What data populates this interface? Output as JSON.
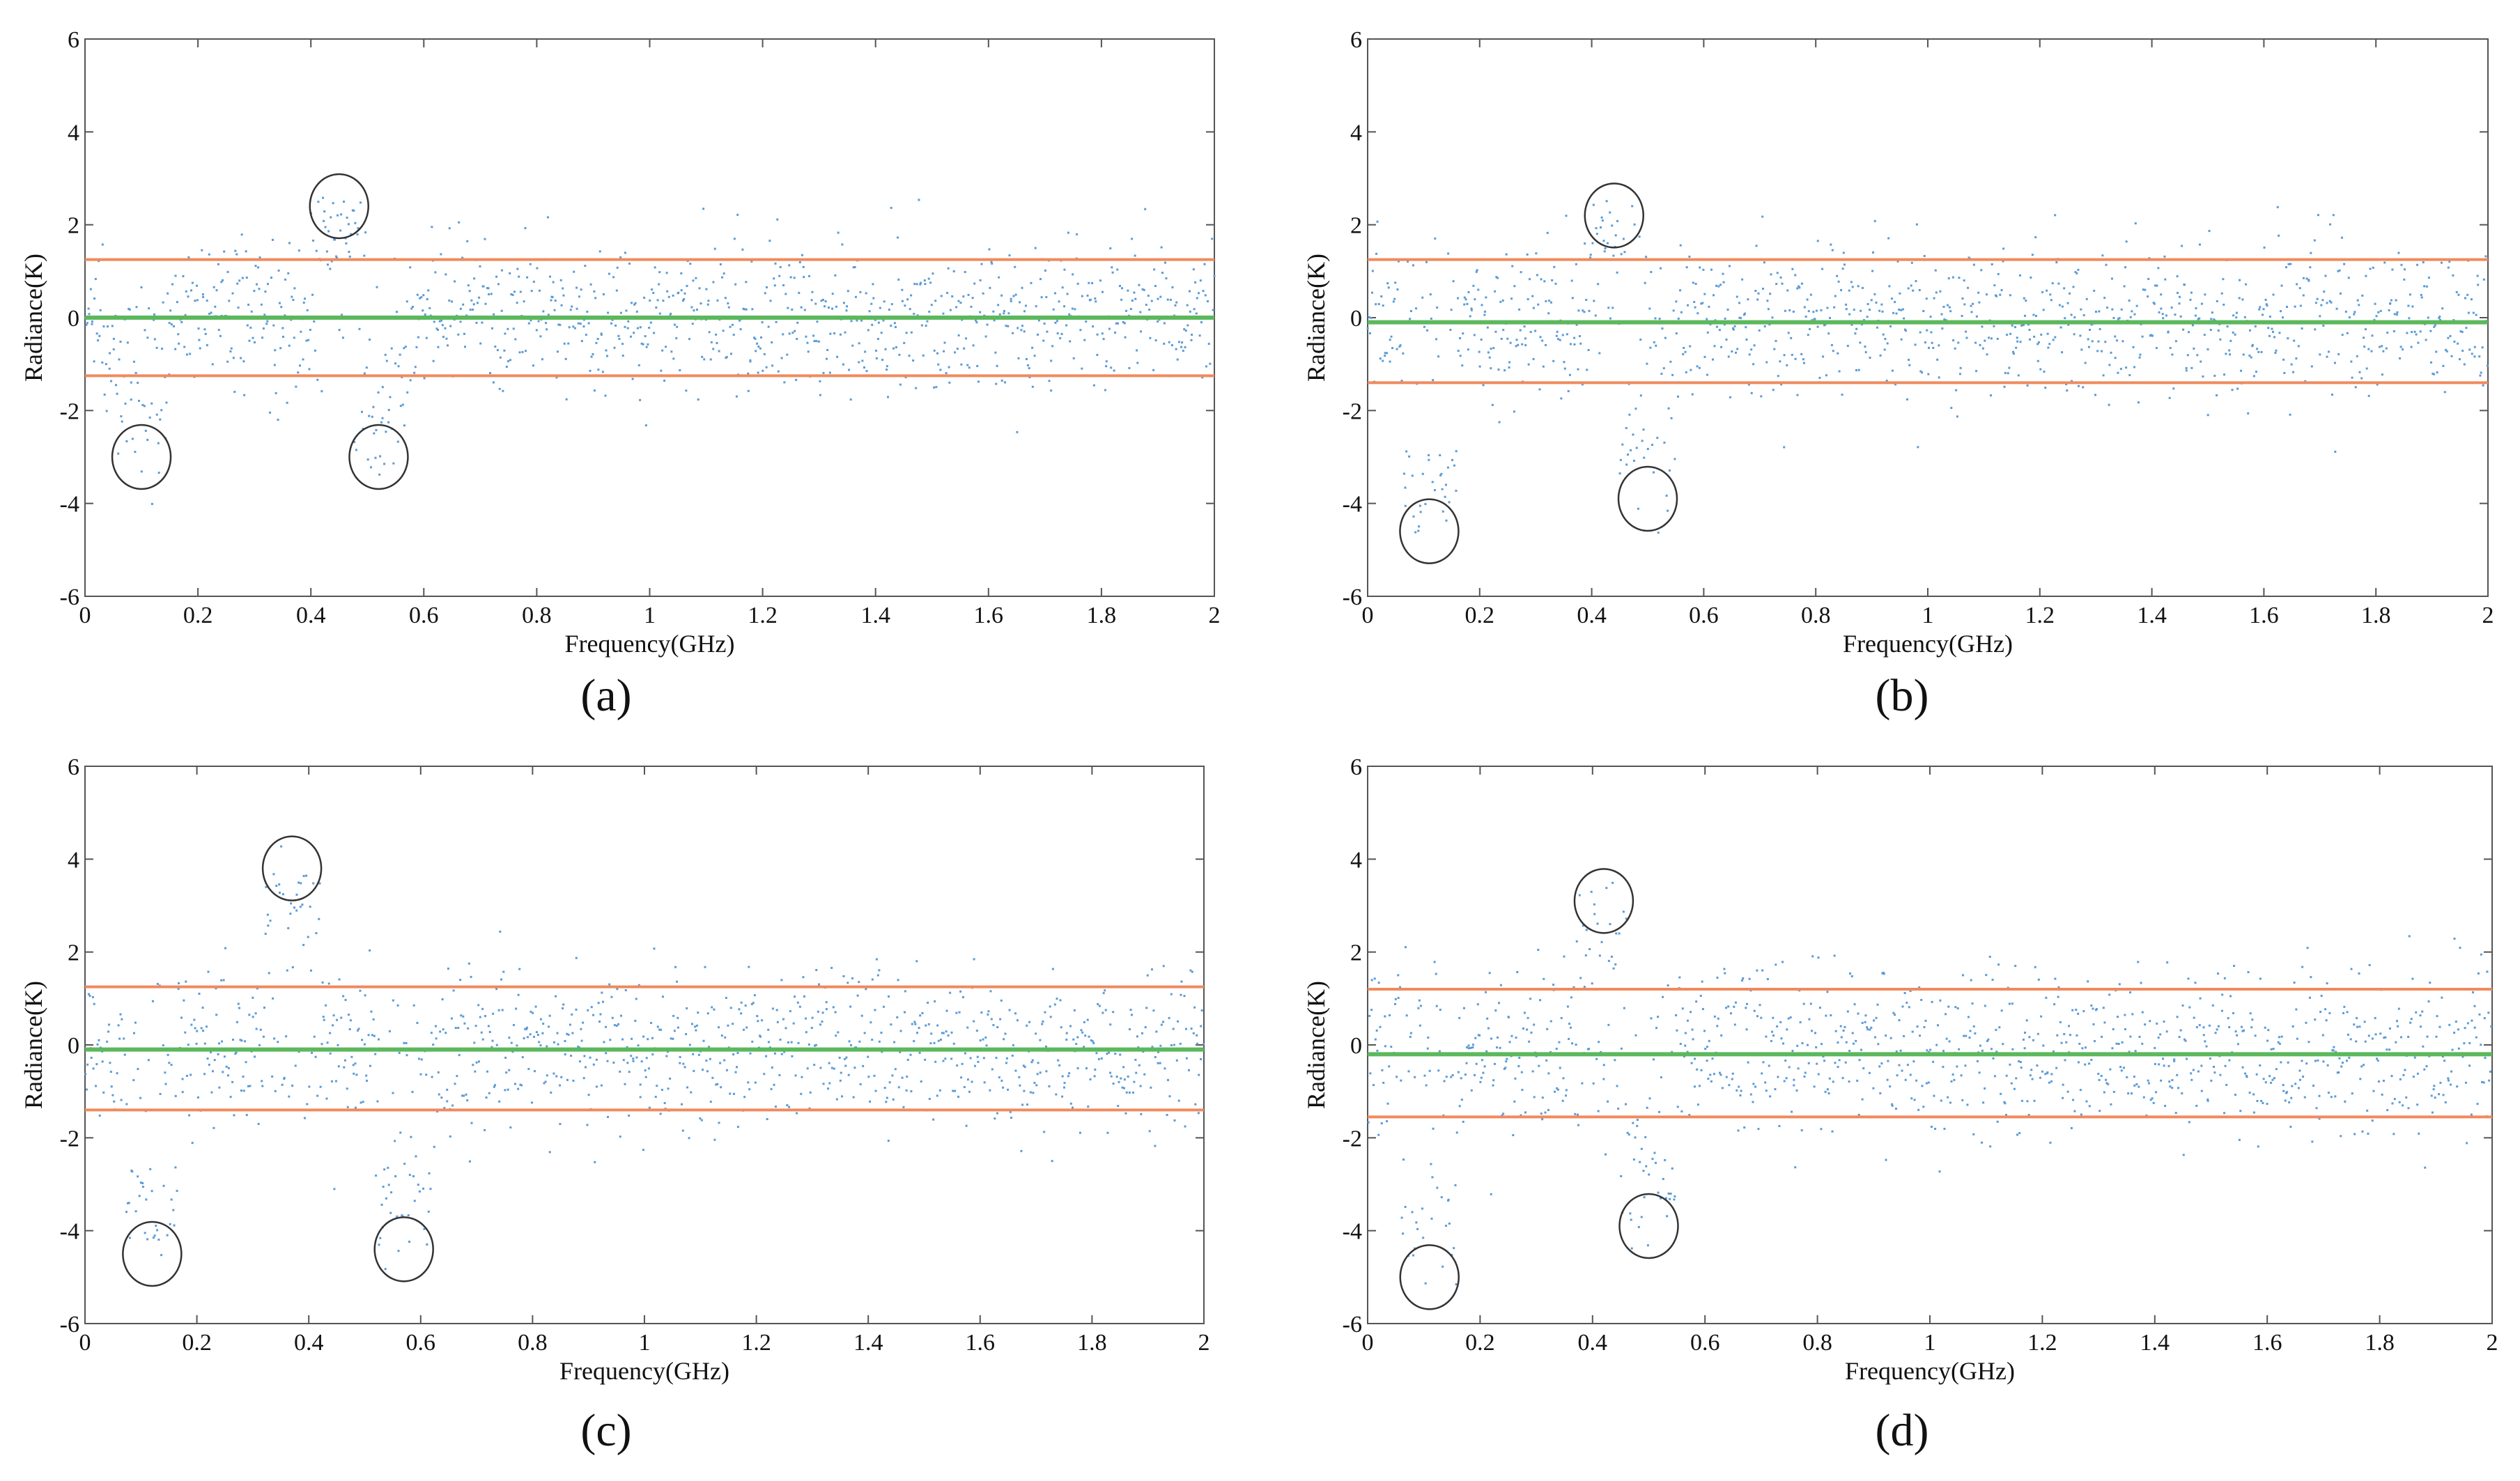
{
  "chart_data": [
    {
      "type": "scatter",
      "label": "a",
      "label_display": "(a)",
      "xlabel": "Frequency(GHz)",
      "ylabel": "Radiance(K)",
      "xlim": [
        0,
        2
      ],
      "ylim": [
        -6,
        6
      ],
      "xticks": [
        "0",
        "0.2",
        "0.4",
        "0.6",
        "0.8",
        "1",
        "1.2",
        "1.4",
        "1.6",
        "1.8",
        "2"
      ],
      "yticks": [
        "-6",
        "-4",
        "-2",
        "0",
        "2",
        "4",
        "6"
      ],
      "mean_line": 0.0,
      "upper_threshold": 1.25,
      "lower_threshold": -1.25,
      "noise_std": 0.8,
      "outlier_circles": [
        {
          "x": 0.1,
          "y": -3.0
        },
        {
          "x": 0.45,
          "y": 2.4
        },
        {
          "x": 0.52,
          "y": -3.0
        }
      ],
      "colors": {
        "points": "#5b9bd5",
        "mean": "#5cb85c",
        "threshold": "#f08a5d",
        "circle": "#333333"
      }
    },
    {
      "type": "scatter",
      "label": "b",
      "label_display": "(b)",
      "xlabel": "Frequency(GHz)",
      "ylabel": "Radiance(K)",
      "xlim": [
        0,
        2
      ],
      "ylim": [
        -6,
        6
      ],
      "xticks": [
        "0",
        "0.2",
        "0.4",
        "0.6",
        "0.8",
        "1",
        "1.2",
        "1.4",
        "1.6",
        "1.8",
        "2"
      ],
      "yticks": [
        "-6",
        "-4",
        "-2",
        "0",
        "2",
        "4",
        "6"
      ],
      "mean_line": -0.1,
      "upper_threshold": 1.25,
      "lower_threshold": -1.4,
      "noise_std": 0.85,
      "outlier_circles": [
        {
          "x": 0.11,
          "y": -4.6
        },
        {
          "x": 0.44,
          "y": 2.2
        },
        {
          "x": 0.5,
          "y": -3.9
        }
      ],
      "colors": {
        "points": "#5b9bd5",
        "mean": "#5cb85c",
        "threshold": "#f08a5d",
        "circle": "#333333"
      }
    },
    {
      "type": "scatter",
      "label": "c",
      "label_display": "(c)",
      "xlabel": "Frequency(GHz)",
      "ylabel": "Radiance(K)",
      "xlim": [
        0,
        2
      ],
      "ylim": [
        -6,
        6
      ],
      "xticks": [
        "0",
        "0.2",
        "0.4",
        "0.6",
        "0.8",
        "1",
        "1.2",
        "1.4",
        "1.6",
        "1.8",
        "2"
      ],
      "yticks": [
        "-6",
        "-4",
        "-2",
        "0",
        "2",
        "4",
        "6"
      ],
      "mean_line": -0.1,
      "upper_threshold": 1.25,
      "lower_threshold": -1.4,
      "noise_std": 0.85,
      "outlier_circles": [
        {
          "x": 0.12,
          "y": -4.5
        },
        {
          "x": 0.37,
          "y": 3.8
        },
        {
          "x": 0.57,
          "y": -4.4
        }
      ],
      "colors": {
        "points": "#5b9bd5",
        "mean": "#5cb85c",
        "threshold": "#f08a5d",
        "circle": "#333333"
      }
    },
    {
      "type": "scatter",
      "label": "d",
      "label_display": "(d)",
      "xlabel": "Frequency(GHz)",
      "ylabel": "Radiance(K)",
      "xlim": [
        0,
        2
      ],
      "ylim": [
        -6,
        6
      ],
      "xticks": [
        "0",
        "0.2",
        "0.4",
        "0.6",
        "0.8",
        "1",
        "1.2",
        "1.4",
        "1.6",
        "1.8",
        "2"
      ],
      "yticks": [
        "-6",
        "-4",
        "-2",
        "0",
        "2",
        "4",
        "6"
      ],
      "mean_line": -0.2,
      "upper_threshold": 1.2,
      "lower_threshold": -1.55,
      "noise_std": 0.9,
      "outlier_circles": [
        {
          "x": 0.11,
          "y": -5.0
        },
        {
          "x": 0.42,
          "y": 3.1
        },
        {
          "x": 0.5,
          "y": -3.9
        }
      ],
      "colors": {
        "points": "#5b9bd5",
        "mean": "#5cb85c",
        "threshold": "#f08a5d",
        "circle": "#333333"
      }
    }
  ]
}
